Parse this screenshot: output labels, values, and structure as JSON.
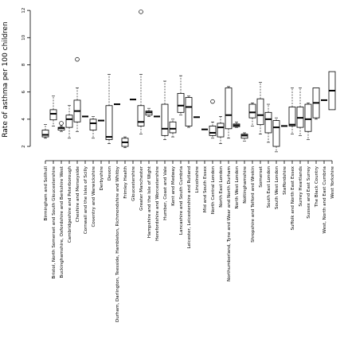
{
  "chart_data": {
    "type": "box",
    "title": "",
    "xlabel": "",
    "ylabel": "Rate of asthma per 100 children",
    "ylim": [
      1.3,
      12.3
    ],
    "yticks": [
      2,
      4,
      6,
      8,
      10,
      12
    ],
    "grid": false,
    "categories": [
      "Birmingham and Solihull",
      "Bristol, North Somerset and South Gloucestershire",
      "Buckinghamshire, Oxfordshire and Berkshire West",
      "Cambridgeshire and Peterborough",
      "Cheshire and Merseyside",
      "Cornwall and the Isles of Scilly",
      "Coventry and Warwickshire",
      "Derbyshire",
      "Devon",
      "Durham, Darlington, Teesside, Hambleton, Richmondshire and Whitby",
      "Frimley Health",
      "Gloucestershire",
      "Greater Manchester",
      "Hampshire and the Isle of Wight",
      "Herefordshire and Worcestershire",
      "Humber, Coast and Vale",
      "Kent and Medway",
      "Lancashire and South Cumbria",
      "Leicester, Leicestershire and Rutland",
      "Lincolnshire",
      "Mid and South Essex",
      "North Central London",
      "North East London",
      "Northumberland, Tyne and Wear and North Durham",
      "North West London",
      "Nottinghamshire",
      "Shropshire and Telford and Wrekin",
      "Somerset",
      "South East London",
      "South West London",
      "Staffordshire",
      "Suffolk and North East Essex",
      "Surrey Heartlands",
      "Sussex and East Surrey",
      "The Black Country",
      "West, North and East Cumbria",
      "West Yorkshire"
    ],
    "boxes": [
      {
        "min": 2.6,
        "q1": 2.7,
        "median": 2.85,
        "q3": 3.2,
        "max": 3.6,
        "outliers": []
      },
      {
        "min": 3.5,
        "q1": 3.95,
        "median": 4.4,
        "q3": 4.7,
        "max": 5.7,
        "outliers": []
      },
      {
        "min": 3.1,
        "q1": 3.2,
        "median": 3.35,
        "q3": 3.4,
        "max": 3.5,
        "outliers": [
          3.7
        ]
      },
      {
        "min": 2.6,
        "q1": 3.4,
        "median": 4.0,
        "q3": 4.3,
        "max": 5.0,
        "outliers": []
      },
      {
        "min": 3.1,
        "q1": 3.8,
        "median": 4.6,
        "q3": 5.4,
        "max": 6.3,
        "outliers": [
          8.4
        ]
      },
      {
        "min": 4.2,
        "q1": 4.2,
        "median": 4.2,
        "q3": 4.2,
        "max": 4.2,
        "outliers": []
      },
      {
        "min": 2.6,
        "q1": 3.2,
        "median": 3.7,
        "q3": 4.0,
        "max": 4.2,
        "outliers": []
      },
      {
        "min": 3.9,
        "q1": 3.9,
        "median": 3.9,
        "q3": 3.9,
        "max": 3.9,
        "outliers": []
      },
      {
        "min": 2.2,
        "q1": 2.5,
        "median": 2.7,
        "q3": 5.0,
        "max": 7.3,
        "outliers": []
      },
      {
        "min": 5.1,
        "q1": 5.1,
        "median": 5.1,
        "q3": 5.1,
        "max": 5.1,
        "outliers": []
      },
      {
        "min": 1.9,
        "q1": 2.0,
        "median": 2.3,
        "q3": 2.6,
        "max": 2.7,
        "outliers": []
      },
      {
        "min": 5.45,
        "q1": 5.45,
        "median": 5.45,
        "q3": 5.45,
        "max": 5.45,
        "outliers": []
      },
      {
        "min": 2.9,
        "q1": 3.5,
        "median": 3.8,
        "q3": 5.0,
        "max": 7.3,
        "outliers": [
          11.9
        ]
      },
      {
        "min": 4.2,
        "q1": 4.3,
        "median": 4.5,
        "q3": 4.6,
        "max": 4.8,
        "outliers": []
      },
      {
        "min": 4.2,
        "q1": 4.2,
        "median": 4.2,
        "q3": 4.2,
        "max": 4.2,
        "outliers": []
      },
      {
        "min": 2.5,
        "q1": 2.8,
        "median": 3.3,
        "q3": 5.1,
        "max": 6.8,
        "outliers": []
      },
      {
        "min": 2.7,
        "q1": 3.0,
        "median": 3.3,
        "q3": 3.8,
        "max": 4.0,
        "outliers": []
      },
      {
        "min": 4.3,
        "q1": 4.5,
        "median": 5.0,
        "q3": 5.9,
        "max": 7.2,
        "outliers": []
      },
      {
        "min": 3.4,
        "q1": 3.5,
        "median": 4.9,
        "q3": 5.6,
        "max": 5.7,
        "outliers": []
      },
      {
        "min": 4.15,
        "q1": 4.15,
        "median": 4.15,
        "q3": 4.15,
        "max": 4.15,
        "outliers": []
      },
      {
        "min": 3.25,
        "q1": 3.25,
        "median": 3.25,
        "q3": 3.25,
        "max": 3.25,
        "outliers": []
      },
      {
        "min": 2.6,
        "q1": 2.8,
        "median": 3.0,
        "q3": 3.5,
        "max": 3.8,
        "outliers": [
          5.3
        ]
      },
      {
        "min": 2.2,
        "q1": 2.7,
        "median": 3.4,
        "q3": 3.7,
        "max": 4.2,
        "outliers": []
      },
      {
        "min": 2.6,
        "q1": 3.3,
        "median": 4.3,
        "q3": 6.3,
        "max": 6.4,
        "outliers": []
      },
      {
        "min": 3.4,
        "q1": 3.45,
        "median": 3.55,
        "q3": 3.65,
        "max": 3.8,
        "outliers": []
      },
      {
        "min": 2.4,
        "q1": 2.6,
        "median": 2.8,
        "q3": 2.9,
        "max": 3.0,
        "outliers": []
      },
      {
        "min": 3.5,
        "q1": 4.1,
        "median": 4.5,
        "q3": 5.1,
        "max": 5.2,
        "outliers": []
      },
      {
        "min": 2.9,
        "q1": 3.6,
        "median": 4.3,
        "q3": 5.5,
        "max": 6.7,
        "outliers": []
      },
      {
        "min": 2.3,
        "q1": 3.0,
        "median": 4.0,
        "q3": 4.5,
        "max": 5.1,
        "outliers": []
      },
      {
        "min": 1.6,
        "q1": 2.0,
        "median": 3.4,
        "q3": 3.9,
        "max": 4.1,
        "outliers": []
      },
      {
        "min": 3.5,
        "q1": 3.5,
        "median": 3.5,
        "q3": 3.5,
        "max": 3.5,
        "outliers": []
      },
      {
        "min": 2.9,
        "q1": 3.5,
        "median": 3.6,
        "q3": 4.9,
        "max": 6.3,
        "outliers": []
      },
      {
        "min": 2.8,
        "q1": 3.4,
        "median": 4.1,
        "q3": 4.9,
        "max": 6.3,
        "outliers": []
      },
      {
        "min": 2.5,
        "q1": 3.1,
        "median": 4.0,
        "q3": 5.1,
        "max": 5.2,
        "outliers": []
      },
      {
        "min": 4.0,
        "q1": 4.1,
        "median": 5.2,
        "q3": 6.3,
        "max": 6.3,
        "outliers": []
      },
      {
        "min": 5.4,
        "q1": 5.4,
        "median": 5.4,
        "q3": 5.4,
        "max": 5.4,
        "outliers": []
      },
      {
        "min": 4.7,
        "q1": 4.7,
        "median": 6.1,
        "q3": 7.5,
        "max": 7.5,
        "outliers": []
      }
    ]
  }
}
